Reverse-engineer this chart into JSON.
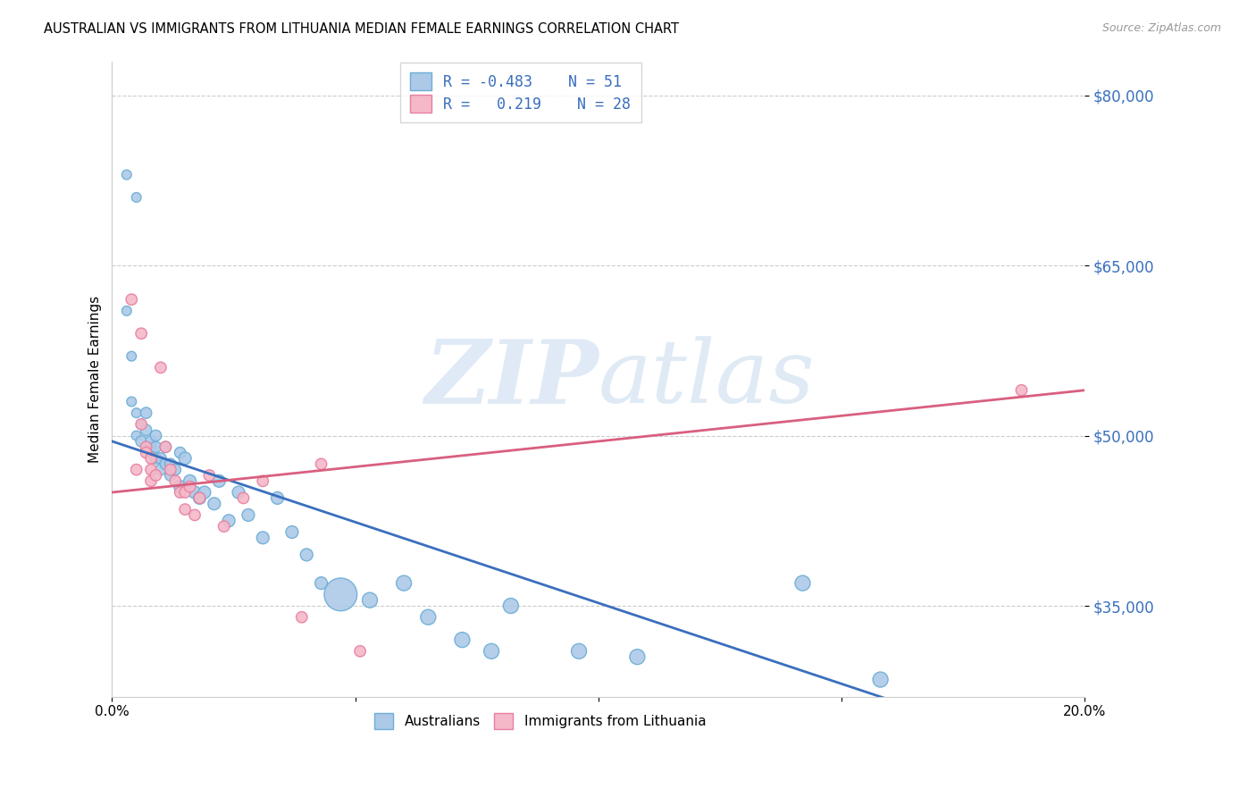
{
  "title": "AUSTRALIAN VS IMMIGRANTS FROM LITHUANIA MEDIAN FEMALE EARNINGS CORRELATION CHART",
  "source": "Source: ZipAtlas.com",
  "ylabel": "Median Female Earnings",
  "watermark_zip": "ZIP",
  "watermark_atlas": "atlas",
  "x_min": 0.0,
  "x_max": 0.2,
  "y_min": 27000,
  "y_max": 83000,
  "ytick_labels": [
    "$35,000",
    "$50,000",
    "$65,000",
    "$80,000"
  ],
  "ytick_values": [
    35000,
    50000,
    65000,
    80000
  ],
  "xtick_labels": [
    "0.0%",
    "",
    "",
    "",
    "20.0%"
  ],
  "xtick_values": [
    0.0,
    0.05,
    0.1,
    0.15,
    0.2
  ],
  "blue_color": "#adc9e8",
  "blue_edge_color": "#6baed6",
  "pink_color": "#f4b8c8",
  "pink_edge_color": "#e87fa0",
  "line_blue": "#3a6fbd",
  "line_pink": "#d95f7f",
  "tick_color": "#3a6fbd",
  "legend_label1": "Australians",
  "legend_label2": "Immigrants from Lithuania",
  "blue_scatter_x": [
    0.003,
    0.005,
    0.003,
    0.004,
    0.004,
    0.005,
    0.005,
    0.006,
    0.006,
    0.007,
    0.007,
    0.008,
    0.008,
    0.009,
    0.009,
    0.009,
    0.01,
    0.01,
    0.011,
    0.011,
    0.012,
    0.012,
    0.013,
    0.014,
    0.014,
    0.015,
    0.016,
    0.017,
    0.018,
    0.019,
    0.021,
    0.022,
    0.024,
    0.026,
    0.028,
    0.031,
    0.034,
    0.037,
    0.04,
    0.043,
    0.047,
    0.053,
    0.06,
    0.065,
    0.072,
    0.078,
    0.082,
    0.096,
    0.108,
    0.142,
    0.158
  ],
  "blue_scatter_y": [
    73000,
    71000,
    61000,
    57000,
    53000,
    52000,
    50000,
    51000,
    49500,
    50500,
    52000,
    49000,
    49500,
    48000,
    49000,
    50000,
    48000,
    47000,
    47500,
    49000,
    46500,
    47500,
    47000,
    48500,
    45500,
    48000,
    46000,
    45000,
    44500,
    45000,
    44000,
    46000,
    42500,
    45000,
    43000,
    41000,
    44500,
    41500,
    39500,
    37000,
    36000,
    35500,
    37000,
    34000,
    32000,
    31000,
    35000,
    31000,
    30500,
    37000,
    28500
  ],
  "blue_scatter_size": [
    60,
    60,
    60,
    60,
    60,
    60,
    60,
    60,
    80,
    80,
    80,
    80,
    80,
    80,
    80,
    80,
    80,
    80,
    80,
    80,
    80,
    80,
    80,
    80,
    100,
    100,
    100,
    100,
    100,
    100,
    100,
    100,
    100,
    100,
    100,
    100,
    100,
    100,
    100,
    100,
    700,
    150,
    150,
    150,
    150,
    150,
    150,
    150,
    150,
    150,
    150
  ],
  "pink_scatter_x": [
    0.004,
    0.005,
    0.006,
    0.006,
    0.007,
    0.007,
    0.008,
    0.008,
    0.008,
    0.009,
    0.01,
    0.011,
    0.012,
    0.013,
    0.014,
    0.015,
    0.015,
    0.016,
    0.017,
    0.018,
    0.02,
    0.023,
    0.027,
    0.031,
    0.039,
    0.043,
    0.051,
    0.187
  ],
  "pink_scatter_y": [
    62000,
    47000,
    59000,
    51000,
    49000,
    48500,
    48000,
    47000,
    46000,
    46500,
    56000,
    49000,
    47000,
    46000,
    45000,
    45000,
    43500,
    45500,
    43000,
    44500,
    46500,
    42000,
    44500,
    46000,
    34000,
    47500,
    31000,
    54000
  ],
  "pink_scatter_size": [
    80,
    80,
    80,
    80,
    80,
    80,
    80,
    80,
    80,
    80,
    80,
    80,
    80,
    80,
    80,
    80,
    80,
    80,
    80,
    80,
    80,
    80,
    80,
    80,
    80,
    80,
    80,
    80
  ],
  "blue_line_x": [
    0.0,
    0.2
  ],
  "blue_line_y": [
    49500,
    21000
  ],
  "pink_line_x": [
    0.0,
    0.2
  ],
  "pink_line_y": [
    45000,
    54000
  ]
}
